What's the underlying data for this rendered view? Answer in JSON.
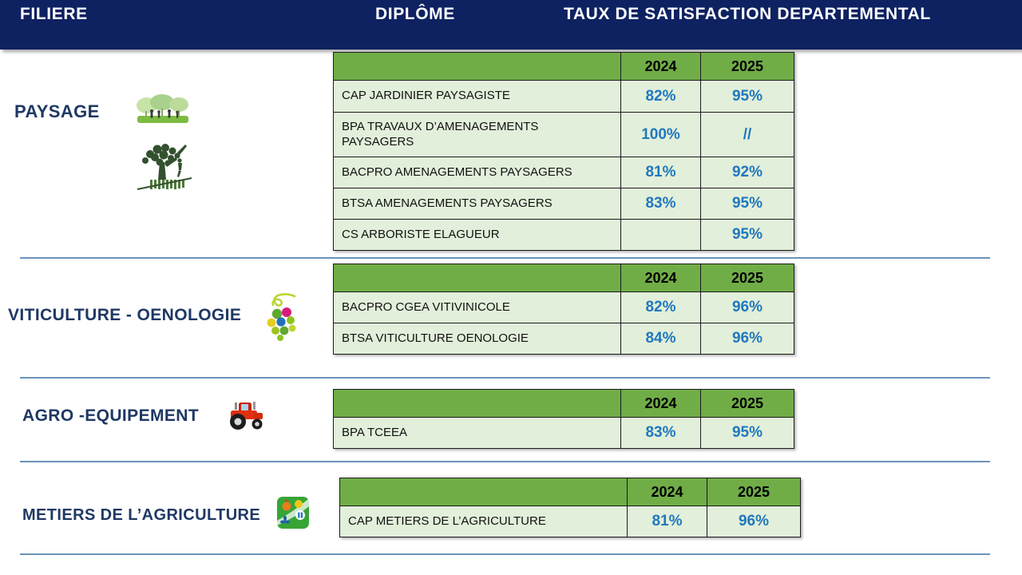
{
  "header": {
    "filiere": "FILIERE",
    "diplome": "DIPLÔME",
    "taux": "TAUX DE SATISFACTION DEPARTEMENTAL"
  },
  "year_headers": [
    "2024",
    "2025"
  ],
  "colors": {
    "banner_navy": "#0E2161",
    "label_navy": "#1F3864",
    "table_header_green": "#70AD47",
    "row_light_green": "#E2EFDA",
    "value_blue": "#1F78BE",
    "divider_blue": "#6B93BA"
  },
  "sections": [
    {
      "name": "PAYSAGE",
      "icons": [
        "park-scene-icon",
        "arborist-tree-icon"
      ],
      "rows": [
        {
          "diploma": "CAP JARDINIER PAYSAGISTE",
          "v2024": "82%",
          "v2025": "95%"
        },
        {
          "diploma": "BPA TRAVAUX D’AMENAGEMENTS\nPAYSAGERS",
          "v2024": "100%",
          "v2025": "//"
        },
        {
          "diploma": "BACPRO AMENAGEMENTS PAYSAGERS",
          "v2024": "81%",
          "v2025": "92%"
        },
        {
          "diploma": "BTSA AMENAGEMENTS PAYSAGERS",
          "v2024": "83%",
          "v2025": "95%"
        },
        {
          "diploma": "CS ARBORISTE ELAGUEUR",
          "v2024": "",
          "v2025": "95%"
        }
      ]
    },
    {
      "name": "VITICULTURE - OENOLOGIE",
      "icons": [
        "grapes-icon"
      ],
      "rows": [
        {
          "diploma": "BACPRO CGEA  VITIVINICOLE",
          "v2024": "82%",
          "v2025": "96%"
        },
        {
          "diploma": "BTSA VITICULTURE OENOLOGIE",
          "v2024": "84%",
          "v2025": "96%"
        }
      ]
    },
    {
      "name": "AGRO -EQUIPEMENT",
      "icons": [
        "tractor-icon"
      ],
      "rows": [
        {
          "diploma": "BPA TCEEA",
          "v2024": "83%",
          "v2025": "95%"
        }
      ]
    },
    {
      "name": "METIERS DE L’AGRICULTURE",
      "icons": [
        "agriculture-badge-icon"
      ],
      "rows": [
        {
          "diploma": "CAP METIERS DE L’AGRICULTURE",
          "v2024": "81%",
          "v2025": "96%"
        }
      ]
    }
  ]
}
